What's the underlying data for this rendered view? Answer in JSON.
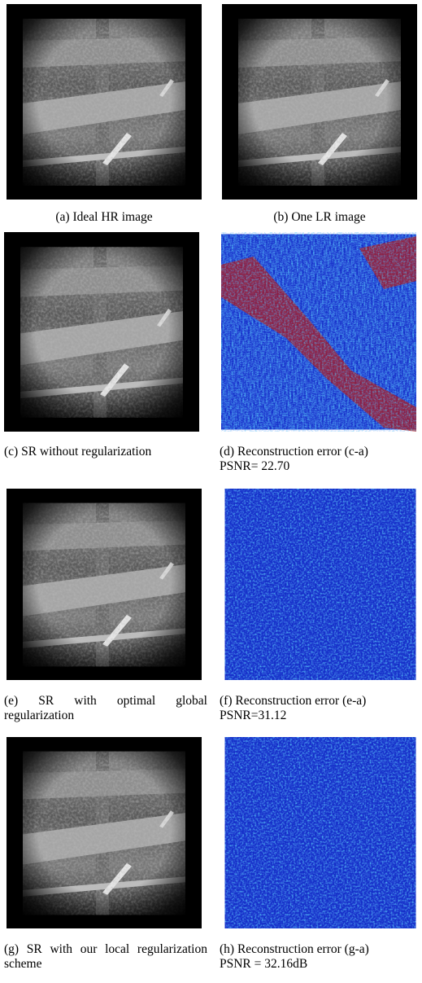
{
  "panels": [
    {
      "caption": "(a) Ideal HR image"
    },
    {
      "caption": "(b) One LR image"
    },
    {
      "caption": "(c) SR without regularization"
    },
    {
      "caption": "(d) Reconstruction error (c-a)",
      "psnr": "PSNR= 22.70"
    },
    {
      "caption": "(e) SR with optimal global regularization"
    },
    {
      "caption": "(f) Reconstruction error (e-a)",
      "psnr": "PSNR=31.12"
    },
    {
      "caption": "(g) SR with our local regularization scheme"
    },
    {
      "caption": "(h) Reconstruction error (g-a)",
      "psnr": "PSNR = 32.16dB"
    }
  ]
}
